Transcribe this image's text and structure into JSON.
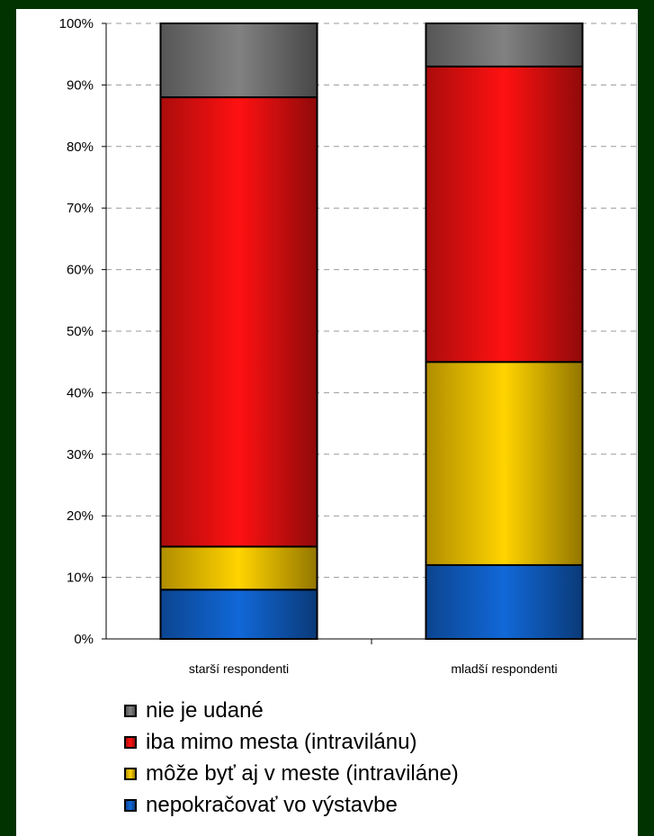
{
  "chart_data": {
    "type": "bar",
    "stacked": true,
    "categories": [
      "starší respondenti",
      "mladší respondenti"
    ],
    "series": [
      {
        "name": "nepokračovať vo výstavbe",
        "values": [
          8,
          12
        ],
        "color": "#1060c8"
      },
      {
        "name": "môže byť aj v meste (intraviláne)",
        "values": [
          7,
          33
        ],
        "color": "#f5c400"
      },
      {
        "name": "iba mimo mesta (intravilánu)",
        "values": [
          73,
          48
        ],
        "color": "#ee1010"
      },
      {
        "name": "nie je udané",
        "values": [
          12,
          7
        ],
        "color": "#777777"
      }
    ],
    "ylim": [
      0,
      100
    ],
    "yticks": [
      "0%",
      "10%",
      "20%",
      "30%",
      "40%",
      "50%",
      "60%",
      "70%",
      "80%",
      "90%",
      "100%"
    ],
    "grid": true,
    "legend_position": "bottom"
  }
}
